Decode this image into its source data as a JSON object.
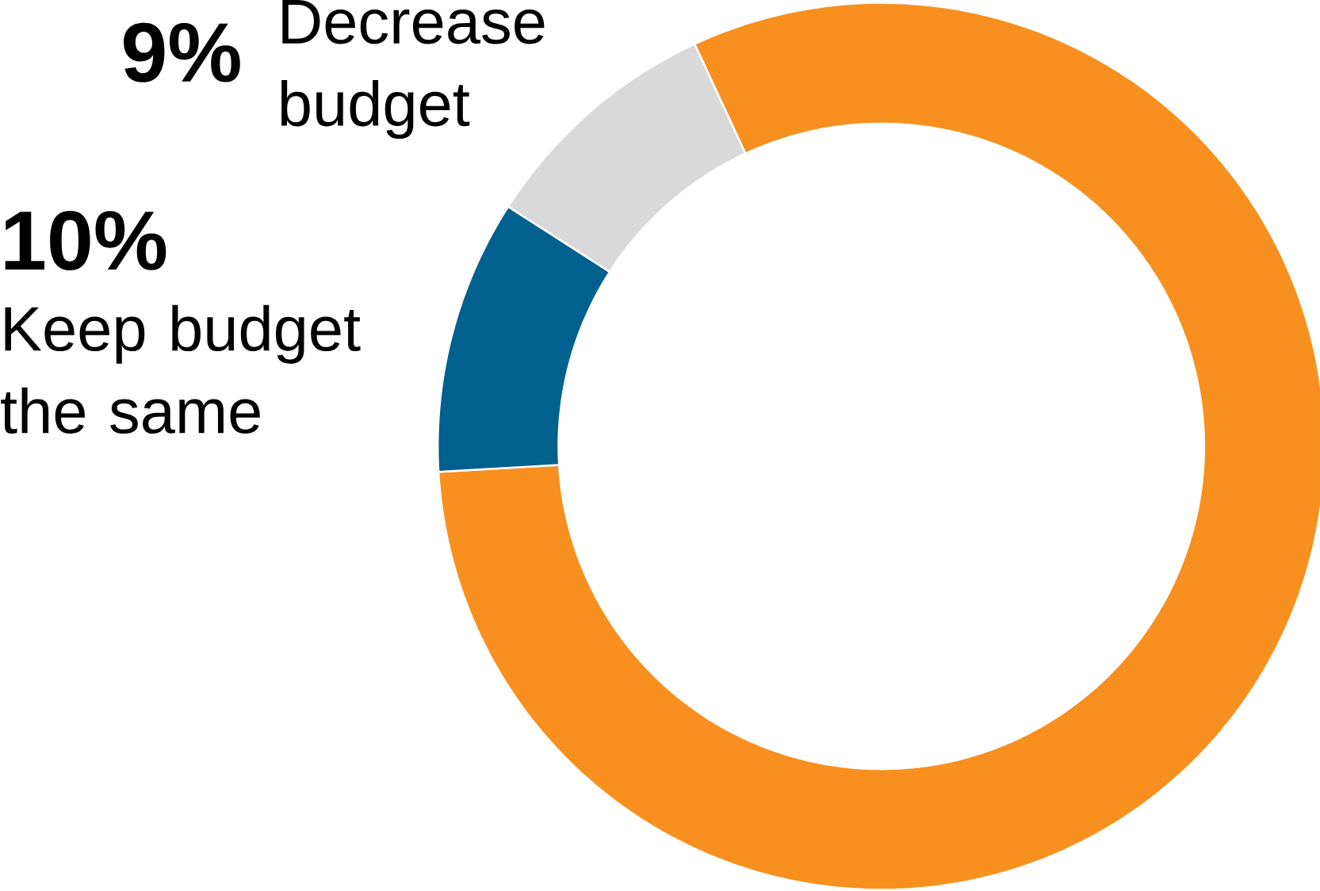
{
  "chart_data": {
    "type": "donut",
    "categories": [
      null,
      "Decrease budget",
      "Keep budget the same"
    ],
    "values": [
      81,
      9,
      10
    ],
    "colors": [
      "#f7901e",
      "#d9d9d9",
      "#00608e"
    ],
    "value_labels": [
      null,
      "9%",
      "10%"
    ]
  }
}
